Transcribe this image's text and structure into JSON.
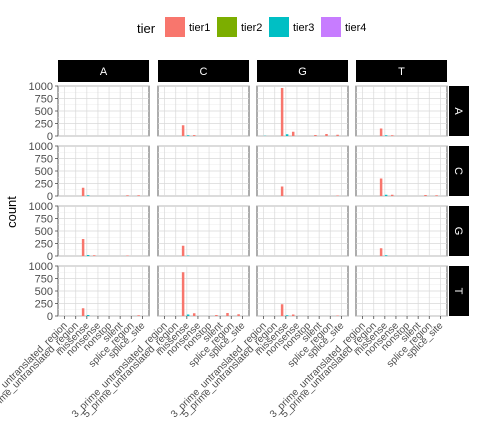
{
  "chart_data": {
    "type": "bar",
    "facet": "grid",
    "ylabel": "count",
    "xlabel": "",
    "legend_title": "tier",
    "legend_position": "top",
    "ylim": [
      0,
      1000
    ],
    "y_ticks": [
      0,
      250,
      500,
      750,
      1000
    ],
    "grid": true,
    "column_strips": [
      "A",
      "C",
      "G",
      "T"
    ],
    "row_strips": [
      "A",
      "C",
      "G",
      "T"
    ],
    "categories": [
      "3_prime_untranslated_region",
      "5_prime_untranslated_region",
      "missense",
      "nonsense",
      "nonstop",
      "silent",
      "splice_region",
      "splice_site"
    ],
    "tiers": [
      {
        "name": "tier1",
        "color": "#F8766D"
      },
      {
        "name": "tier2",
        "color": "#7CAE00"
      },
      {
        "name": "tier3",
        "color": "#00BFC4"
      },
      {
        "name": "tier4",
        "color": "#C77CFF"
      }
    ],
    "panels": [
      {
        "row": "A",
        "col": "A",
        "bars": []
      },
      {
        "row": "A",
        "col": "C",
        "bars": [
          {
            "category": "missense",
            "tier": "tier1",
            "value": 215
          },
          {
            "category": "missense",
            "tier": "tier3",
            "value": 15
          },
          {
            "category": "nonsense",
            "tier": "tier1",
            "value": 18
          }
        ]
      },
      {
        "row": "A",
        "col": "G",
        "bars": [
          {
            "category": "3_prime_untranslated_region",
            "tier": "tier3",
            "value": 5
          },
          {
            "category": "missense",
            "tier": "tier1",
            "value": 960
          },
          {
            "category": "missense",
            "tier": "tier3",
            "value": 35
          },
          {
            "category": "nonsense",
            "tier": "tier1",
            "value": 85
          },
          {
            "category": "silent",
            "tier": "tier1",
            "value": 20
          },
          {
            "category": "splice_region",
            "tier": "tier1",
            "value": 40
          },
          {
            "category": "splice_site",
            "tier": "tier1",
            "value": 25
          }
        ]
      },
      {
        "row": "A",
        "col": "T",
        "bars": [
          {
            "category": "missense",
            "tier": "tier1",
            "value": 150
          },
          {
            "category": "missense",
            "tier": "tier3",
            "value": 15
          },
          {
            "category": "nonsense",
            "tier": "tier1",
            "value": 15
          }
        ]
      },
      {
        "row": "C",
        "col": "A",
        "bars": [
          {
            "category": "missense",
            "tier": "tier1",
            "value": 165
          },
          {
            "category": "missense",
            "tier": "tier3",
            "value": 15
          },
          {
            "category": "splice_region",
            "tier": "tier1",
            "value": 15
          },
          {
            "category": "splice_site",
            "tier": "tier1",
            "value": 15
          }
        ]
      },
      {
        "row": "C",
        "col": "C",
        "bars": []
      },
      {
        "row": "C",
        "col": "G",
        "bars": [
          {
            "category": "missense",
            "tier": "tier1",
            "value": 190
          },
          {
            "category": "splice_site",
            "tier": "tier1",
            "value": 10
          }
        ]
      },
      {
        "row": "C",
        "col": "T",
        "bars": [
          {
            "category": "missense",
            "tier": "tier1",
            "value": 350
          },
          {
            "category": "missense",
            "tier": "tier3",
            "value": 25
          },
          {
            "category": "nonsense",
            "tier": "tier1",
            "value": 25
          },
          {
            "category": "splice_region",
            "tier": "tier1",
            "value": 20
          },
          {
            "category": "splice_site",
            "tier": "tier1",
            "value": 15
          }
        ]
      },
      {
        "row": "G",
        "col": "A",
        "bars": [
          {
            "category": "missense",
            "tier": "tier1",
            "value": 340
          },
          {
            "category": "missense",
            "tier": "tier3",
            "value": 20
          },
          {
            "category": "nonsense",
            "tier": "tier1",
            "value": 15
          },
          {
            "category": "splice_region",
            "tier": "tier1",
            "value": 10
          }
        ]
      },
      {
        "row": "G",
        "col": "C",
        "bars": [
          {
            "category": "missense",
            "tier": "tier1",
            "value": 205
          },
          {
            "category": "missense",
            "tier": "tier3",
            "value": 10
          }
        ]
      },
      {
        "row": "G",
        "col": "G",
        "bars": []
      },
      {
        "row": "G",
        "col": "T",
        "bars": [
          {
            "category": "missense",
            "tier": "tier1",
            "value": 155
          },
          {
            "category": "missense",
            "tier": "tier3",
            "value": 15
          }
        ]
      },
      {
        "row": "T",
        "col": "A",
        "bars": [
          {
            "category": "missense",
            "tier": "tier1",
            "value": 155
          },
          {
            "category": "missense",
            "tier": "tier3",
            "value": 20
          },
          {
            "category": "splice_site",
            "tier": "tier1",
            "value": 15
          }
        ]
      },
      {
        "row": "T",
        "col": "C",
        "bars": [
          {
            "category": "missense",
            "tier": "tier1",
            "value": 875
          },
          {
            "category": "missense",
            "tier": "tier3",
            "value": 30
          },
          {
            "category": "nonsense",
            "tier": "tier1",
            "value": 55
          },
          {
            "category": "silent",
            "tier": "tier1",
            "value": 20
          },
          {
            "category": "splice_region",
            "tier": "tier1",
            "value": 60
          },
          {
            "category": "splice_site",
            "tier": "tier1",
            "value": 35
          }
        ]
      },
      {
        "row": "T",
        "col": "G",
        "bars": [
          {
            "category": "missense",
            "tier": "tier1",
            "value": 235
          },
          {
            "category": "missense",
            "tier": "tier3",
            "value": 15
          },
          {
            "category": "nonsense",
            "tier": "tier1",
            "value": 30
          },
          {
            "category": "splice_site",
            "tier": "tier1",
            "value": 10
          }
        ]
      },
      {
        "row": "T",
        "col": "T",
        "bars": []
      }
    ]
  }
}
